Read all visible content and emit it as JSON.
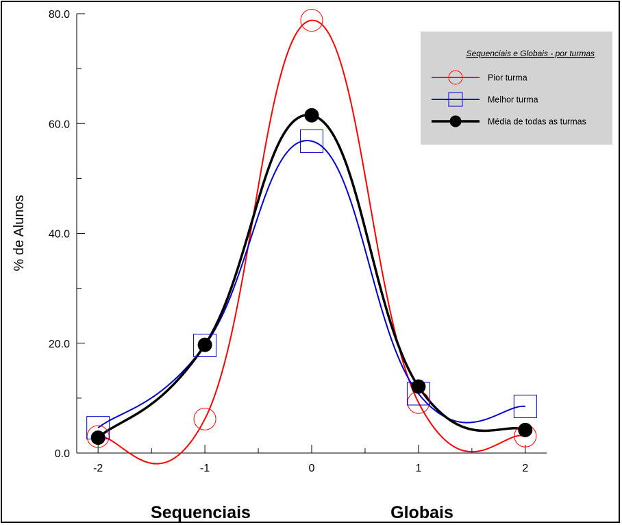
{
  "chart_data": {
    "type": "line",
    "ylabel": "% de Alunos",
    "x": [
      -2,
      -1,
      0,
      1,
      2
    ],
    "xticks": [
      "-2",
      "-1",
      "0",
      "1",
      "2"
    ],
    "yticks": [
      "0.0",
      "20.0",
      "40.0",
      "60.0",
      "80.0"
    ],
    "xlim": [
      -2.2,
      2.2
    ],
    "ylim": [
      0,
      80
    ],
    "category_labels": {
      "left": "Sequenciais",
      "right": "Globais"
    },
    "legend": {
      "title": "Sequenciais e Globais - por turmas",
      "position": "top-right"
    },
    "series": [
      {
        "name": "Pior turma",
        "values": [
          3.0,
          6.2,
          78.8,
          9.2,
          3.1
        ],
        "color": "#ff0000",
        "marker": "circle-open",
        "line_width": 2
      },
      {
        "name": "Melhor turma",
        "values": [
          4.6,
          19.6,
          56.8,
          10.8,
          8.5
        ],
        "color": "#0000cc",
        "marker": "square-open",
        "line_width": 2
      },
      {
        "name": "Média de todas as turmas",
        "values": [
          2.8,
          19.7,
          61.5,
          12.1,
          4.2
        ],
        "color": "#000000",
        "marker": "circle-filled",
        "line_width": 3.5
      }
    ],
    "legend_bg": "#d3d3d3"
  }
}
